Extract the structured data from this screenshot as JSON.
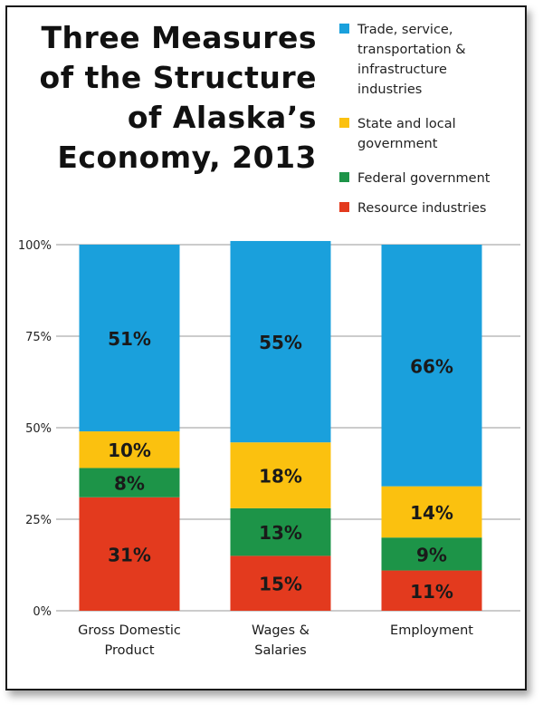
{
  "title_lines": [
    "Three Measures",
    "of the Structure",
    "of Alaska’s",
    "Economy, 2013"
  ],
  "legend": [
    {
      "lines": [
        "Trade, service,",
        "transportation &",
        "infrastructure",
        "industries"
      ],
      "color": "#1aa0dc"
    },
    {
      "lines": [
        "State and local",
        "government"
      ],
      "color": "#fbc10f"
    },
    {
      "lines": [
        "Federal government"
      ],
      "color": "#1d9448"
    },
    {
      "lines": [
        "Resource industries"
      ],
      "color": "#e33a1e"
    }
  ],
  "chart_data": {
    "type": "bar",
    "stacked": true,
    "title": "Three Measures of the Structure of Alaska’s Economy, 2013",
    "categories": [
      {
        "lines": [
          "Gross Domestic",
          "Product"
        ]
      },
      {
        "lines": [
          "Wages &",
          "Salaries"
        ]
      },
      {
        "lines": [
          "Employment"
        ]
      }
    ],
    "series": [
      {
        "name": "Resource industries",
        "color": "#e33a1e",
        "values": [
          31,
          15,
          11
        ],
        "labels": [
          "31%",
          "15%",
          "11%"
        ]
      },
      {
        "name": "Federal government",
        "color": "#1d9448",
        "values": [
          8,
          13,
          9
        ],
        "labels": [
          "8%",
          "13%",
          "9%"
        ]
      },
      {
        "name": "State and local government",
        "color": "#fbc10f",
        "values": [
          10,
          18,
          14
        ],
        "labels": [
          "10%",
          "18%",
          "14%"
        ]
      },
      {
        "name": "Trade, service, transportation & infrastructure industries",
        "color": "#1aa0dc",
        "values": [
          51,
          55,
          66
        ],
        "labels": [
          "51%",
          "55%",
          "66%"
        ]
      }
    ],
    "yticks": [
      "0%",
      "25%",
      "50%",
      "75%",
      "100%"
    ],
    "ylim": [
      0,
      100
    ],
    "grid": true
  }
}
